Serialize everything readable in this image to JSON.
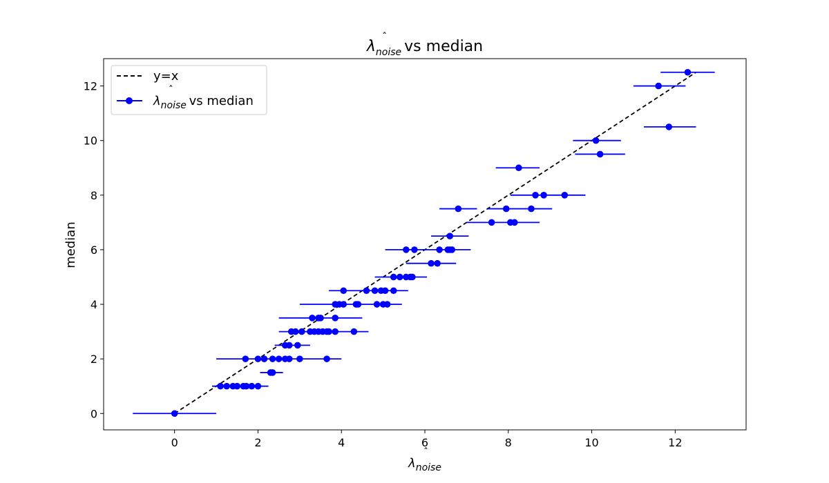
{
  "chart_data": {
    "type": "scatter",
    "title": {
      "symbol": "λ",
      "subscript": "noise",
      "hat": "ˆ",
      "rest": " vs median"
    },
    "xlabel": {
      "symbol": "λ",
      "subscript": "noise",
      "hat": "ˆ"
    },
    "ylabel": "median",
    "xlim": [
      -1.7,
      13.7
    ],
    "ylim": [
      -0.6,
      13.0
    ],
    "xticks": [
      0,
      2,
      4,
      6,
      8,
      10,
      12
    ],
    "yticks": [
      0,
      2,
      4,
      6,
      8,
      10,
      12
    ],
    "grid": false,
    "legend_position": "top-left",
    "colors": {
      "points": "#0000ff",
      "reference": "#000000"
    },
    "reference_line": {
      "name": "y=x",
      "style": "dashed",
      "x": [
        0,
        12.5
      ],
      "y": [
        0,
        12.5
      ]
    },
    "series": [
      {
        "name": {
          "symbol": "λ",
          "subscript": "noise",
          "hat": "ˆ",
          "rest": " vs median"
        },
        "points": [
          {
            "x": 0.0,
            "y": 0.0
          },
          {
            "x": 1.1,
            "y": 1.0
          },
          {
            "x": 1.25,
            "y": 1.0
          },
          {
            "x": 1.4,
            "y": 1.0
          },
          {
            "x": 1.5,
            "y": 1.0
          },
          {
            "x": 1.65,
            "y": 1.0
          },
          {
            "x": 1.72,
            "y": 1.0
          },
          {
            "x": 1.85,
            "y": 1.0
          },
          {
            "x": 2.0,
            "y": 1.0
          },
          {
            "x": 2.3,
            "y": 1.5
          },
          {
            "x": 2.35,
            "y": 1.5
          },
          {
            "x": 1.7,
            "y": 2.0
          },
          {
            "x": 2.0,
            "y": 2.0
          },
          {
            "x": 2.15,
            "y": 2.0
          },
          {
            "x": 2.35,
            "y": 2.0
          },
          {
            "x": 2.5,
            "y": 2.0
          },
          {
            "x": 2.65,
            "y": 2.0
          },
          {
            "x": 2.75,
            "y": 2.0
          },
          {
            "x": 3.0,
            "y": 2.0
          },
          {
            "x": 3.65,
            "y": 2.0
          },
          {
            "x": 2.65,
            "y": 2.5
          },
          {
            "x": 2.75,
            "y": 2.5
          },
          {
            "x": 2.95,
            "y": 2.5
          },
          {
            "x": 2.8,
            "y": 3.0
          },
          {
            "x": 2.9,
            "y": 3.0
          },
          {
            "x": 3.05,
            "y": 3.0
          },
          {
            "x": 3.25,
            "y": 3.0
          },
          {
            "x": 3.35,
            "y": 3.0
          },
          {
            "x": 3.45,
            "y": 3.0
          },
          {
            "x": 3.55,
            "y": 3.0
          },
          {
            "x": 3.65,
            "y": 3.0
          },
          {
            "x": 3.7,
            "y": 3.0
          },
          {
            "x": 3.85,
            "y": 3.0
          },
          {
            "x": 4.3,
            "y": 3.0
          },
          {
            "x": 3.3,
            "y": 3.5
          },
          {
            "x": 3.45,
            "y": 3.5
          },
          {
            "x": 3.5,
            "y": 3.5
          },
          {
            "x": 3.85,
            "y": 3.5
          },
          {
            "x": 3.85,
            "y": 4.0
          },
          {
            "x": 3.95,
            "y": 4.0
          },
          {
            "x": 4.05,
            "y": 4.0
          },
          {
            "x": 4.35,
            "y": 4.0
          },
          {
            "x": 4.4,
            "y": 4.0
          },
          {
            "x": 4.85,
            "y": 4.0
          },
          {
            "x": 5.0,
            "y": 4.0
          },
          {
            "x": 5.1,
            "y": 4.0
          },
          {
            "x": 4.05,
            "y": 4.5
          },
          {
            "x": 4.6,
            "y": 4.5
          },
          {
            "x": 4.8,
            "y": 4.5
          },
          {
            "x": 4.95,
            "y": 4.5
          },
          {
            "x": 5.05,
            "y": 4.5
          },
          {
            "x": 5.25,
            "y": 4.5
          },
          {
            "x": 5.25,
            "y": 5.0
          },
          {
            "x": 5.4,
            "y": 5.0
          },
          {
            "x": 5.55,
            "y": 5.0
          },
          {
            "x": 5.65,
            "y": 5.0
          },
          {
            "x": 5.7,
            "y": 5.0
          },
          {
            "x": 6.15,
            "y": 5.5
          },
          {
            "x": 6.3,
            "y": 5.5
          },
          {
            "x": 5.55,
            "y": 6.0
          },
          {
            "x": 5.75,
            "y": 6.0
          },
          {
            "x": 6.35,
            "y": 6.0
          },
          {
            "x": 6.55,
            "y": 6.0
          },
          {
            "x": 6.6,
            "y": 6.0
          },
          {
            "x": 6.65,
            "y": 6.0
          },
          {
            "x": 6.6,
            "y": 6.5
          },
          {
            "x": 7.6,
            "y": 7.0
          },
          {
            "x": 8.05,
            "y": 7.0
          },
          {
            "x": 8.15,
            "y": 7.0
          },
          {
            "x": 6.8,
            "y": 7.5
          },
          {
            "x": 7.95,
            "y": 7.5
          },
          {
            "x": 8.55,
            "y": 7.5
          },
          {
            "x": 8.65,
            "y": 8.0
          },
          {
            "x": 8.85,
            "y": 8.0
          },
          {
            "x": 9.35,
            "y": 8.0
          },
          {
            "x": 8.25,
            "y": 9.0
          },
          {
            "x": 10.2,
            "y": 9.5
          },
          {
            "x": 10.1,
            "y": 10.0
          },
          {
            "x": 11.85,
            "y": 10.5
          },
          {
            "x": 11.6,
            "y": 12.0
          },
          {
            "x": 12.3,
            "y": 12.5
          }
        ],
        "error_bars_x": [
          {
            "y": 0.0,
            "from": -1.0,
            "to": 1.0
          },
          {
            "y": 1.0,
            "from": 0.9,
            "to": 2.25
          },
          {
            "y": 1.5,
            "from": 2.05,
            "to": 2.6
          },
          {
            "y": 2.0,
            "from": 1.0,
            "to": 4.0
          },
          {
            "y": 2.5,
            "from": 2.4,
            "to": 3.25
          },
          {
            "y": 3.0,
            "from": 2.5,
            "to": 4.65
          },
          {
            "y": 3.5,
            "from": 2.5,
            "to": 4.5
          },
          {
            "y": 4.0,
            "from": 3.0,
            "to": 5.45
          },
          {
            "y": 4.5,
            "from": 3.7,
            "to": 5.6
          },
          {
            "y": 5.0,
            "from": 4.8,
            "to": 6.05
          },
          {
            "y": 5.5,
            "from": 5.55,
            "to": 6.75
          },
          {
            "y": 6.0,
            "from": 5.05,
            "to": 7.1
          },
          {
            "y": 6.5,
            "from": 6.15,
            "to": 7.05
          },
          {
            "y": 7.0,
            "from": 7.0,
            "to": 8.75
          },
          {
            "y": 7.5,
            "from": 6.35,
            "to": 7.25
          },
          {
            "y": 7.5,
            "from": 7.5,
            "to": 9.05
          },
          {
            "y": 8.0,
            "from": 8.05,
            "to": 9.85
          },
          {
            "y": 9.0,
            "from": 7.7,
            "to": 8.75
          },
          {
            "y": 9.5,
            "from": 9.6,
            "to": 10.8
          },
          {
            "y": 10.0,
            "from": 9.55,
            "to": 10.7
          },
          {
            "y": 10.5,
            "from": 11.25,
            "to": 12.5
          },
          {
            "y": 12.0,
            "from": 11.0,
            "to": 12.25
          },
          {
            "y": 12.5,
            "from": 11.65,
            "to": 12.95
          }
        ]
      }
    ]
  }
}
